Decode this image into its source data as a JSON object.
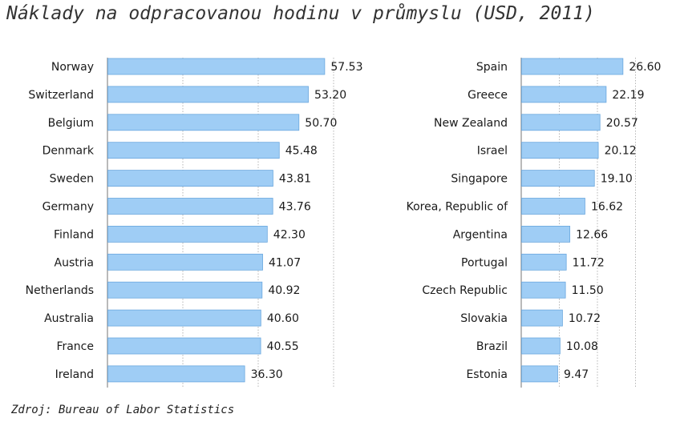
{
  "title": "Náklady na odpracovanou hodinu v průmyslu (USD, 2011)",
  "source": "Zdroj: Bureau of Labor Statistics",
  "colors": {
    "bar": "#9fcdf5",
    "bar_stroke": "#6aa7de",
    "axis": "#8c8c8c",
    "grid": "#b5b5b5"
  },
  "chart_data": [
    {
      "type": "bar",
      "orientation": "horizontal",
      "grid": true,
      "xlim": [
        0,
        60
      ],
      "categories": [
        "Norway",
        "Switzerland",
        "Belgium",
        "Denmark",
        "Sweden",
        "Germany",
        "Finland",
        "Austria",
        "Netherlands",
        "Australia",
        "France",
        "Ireland"
      ],
      "values": [
        57.53,
        53.2,
        50.7,
        45.48,
        43.81,
        43.76,
        42.3,
        41.07,
        40.92,
        40.6,
        40.55,
        36.3
      ],
      "value_labels": [
        "57.53",
        "53.20",
        "50.70",
        "45.48",
        "43.81",
        "43.76",
        "42.30",
        "41.07",
        "40.92",
        "40.60",
        "40.55",
        "36.30"
      ]
    },
    {
      "type": "bar",
      "orientation": "horizontal",
      "grid": true,
      "xlim": [
        0,
        30
      ],
      "categories": [
        "Spain",
        "Greece",
        "New Zealand",
        "Israel",
        "Singapore",
        "Korea, Republic of",
        "Argentina",
        "Portugal",
        "Czech Republic",
        "Slovakia",
        "Brazil",
        "Estonia"
      ],
      "values": [
        26.6,
        22.19,
        20.57,
        20.12,
        19.1,
        16.62,
        12.66,
        11.72,
        11.5,
        10.72,
        10.08,
        9.47
      ],
      "value_labels": [
        "26.60",
        "22.19",
        "20.57",
        "20.12",
        "19.10",
        "16.62",
        "12.66",
        "11.72",
        "11.50",
        "10.72",
        "10.08",
        "9.47"
      ]
    }
  ]
}
